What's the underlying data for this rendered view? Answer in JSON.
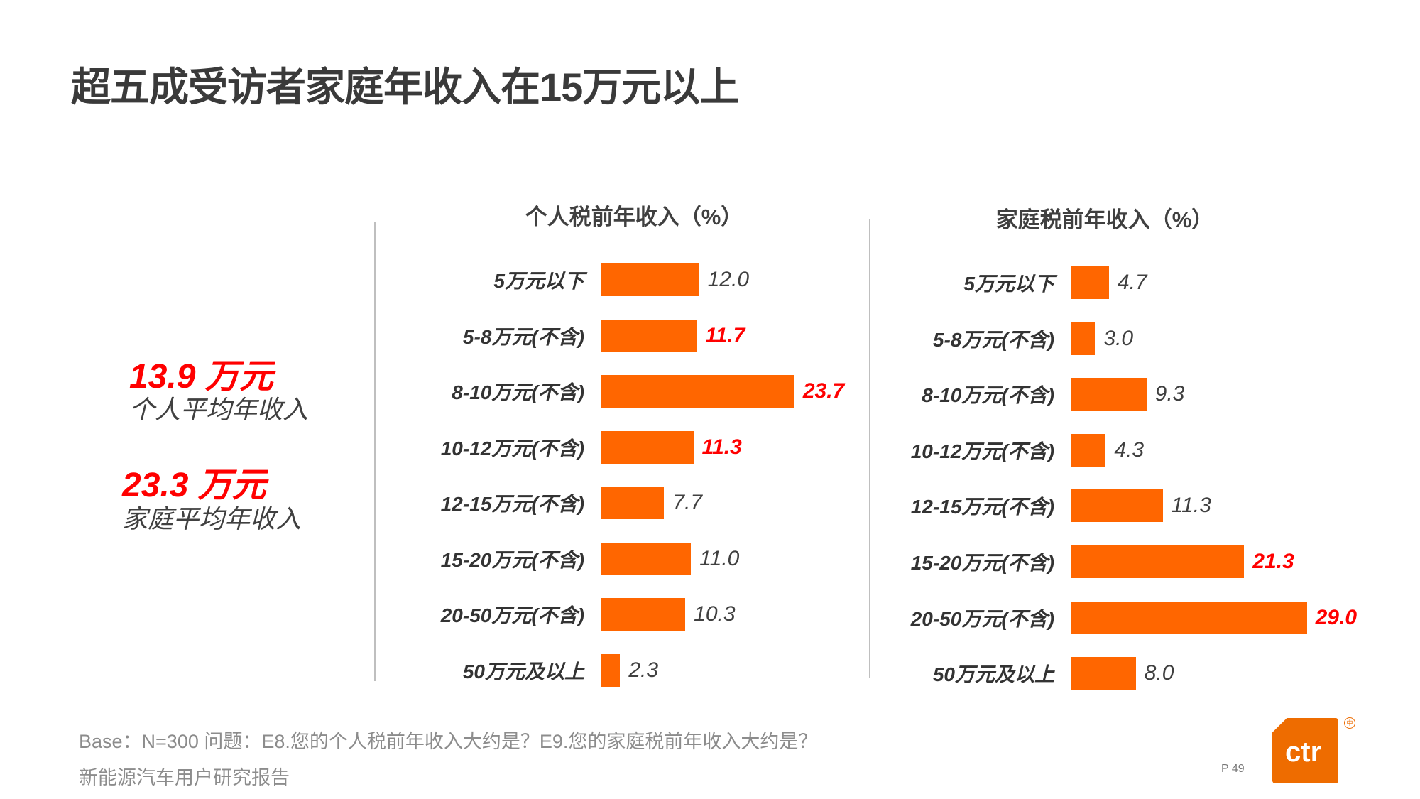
{
  "title": "超五成受访者家庭年收入在15万元以上",
  "stats": [
    {
      "value": "13.9 万元",
      "label": "个人平均年收入"
    },
    {
      "value": "23.3 万元",
      "label": "家庭平均年收入"
    }
  ],
  "chart_data": [
    {
      "type": "bar",
      "orientation": "horizontal",
      "title": "个人税前年收入（%）",
      "categories": [
        "5万元以下",
        "5-8万元(不含)",
        "8-10万元(不含)",
        "10-12万元(不含)",
        "12-15万元(不含)",
        "15-20万元(不含)",
        "20-50万元(不含)",
        "50万元及以上"
      ],
      "values": [
        12.0,
        11.7,
        23.7,
        11.3,
        7.7,
        11.0,
        10.3,
        2.3
      ],
      "labels": [
        "12.0",
        "11.7",
        "23.7",
        "11.3",
        "7.7",
        "11.0",
        "10.3",
        "2.3"
      ],
      "highlighted": [
        false,
        true,
        true,
        true,
        false,
        false,
        false,
        false
      ],
      "bar_color": "#ff6600",
      "highlight_color": "#ff0000",
      "grid": false
    },
    {
      "type": "bar",
      "orientation": "horizontal",
      "title": "家庭税前年收入（%）",
      "categories": [
        "5万元以下",
        "5-8万元(不含)",
        "8-10万元(不含)",
        "10-12万元(不含)",
        "12-15万元(不含)",
        "15-20万元(不含)",
        "20-50万元(不含)",
        "50万元及以上"
      ],
      "values": [
        4.7,
        3.0,
        9.3,
        4.3,
        11.3,
        21.3,
        29.0,
        8.0
      ],
      "labels": [
        "4.7",
        "3.0",
        "9.3",
        "4.3",
        "11.3",
        "21.3",
        "29.0",
        "8.0"
      ],
      "highlighted": [
        false,
        false,
        false,
        false,
        false,
        true,
        true,
        false
      ],
      "bar_color": "#ff6600",
      "highlight_color": "#ff0000",
      "grid": false
    }
  ],
  "footer": {
    "note": "Base：N=300    问题：E8.您的个人税前年收入大约是？E9.您的家庭税前年收入大约是？",
    "source": "新能源汽车用户研究报告",
    "page": "P 49"
  },
  "logo": {
    "text": "ctr",
    "color": "#ee6c00"
  }
}
